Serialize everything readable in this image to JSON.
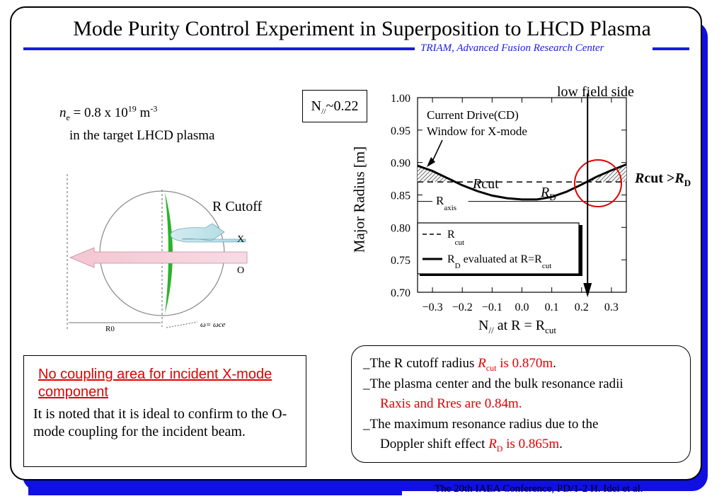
{
  "title": "Mode Purity Control Experiment in Superposition to LHCD Plasma",
  "subtitle": "TRIAM, Advanced Fusion Research Center",
  "density": {
    "symbol": "n",
    "subscript": "e",
    "value_text": " = 0.8 x 10",
    "exponent": "19",
    "unit": " m",
    "unit_exp": "-3",
    "line2": "in the target LHCD plasma"
  },
  "diagram": {
    "r_cutoff_label": "R Cutoff",
    "x_label": "X",
    "o_label": "O",
    "r0_label": "R0",
    "omega_label": "ω= ωce"
  },
  "npar_box": {
    "symbol": "N",
    "sub": "//",
    "value": "~0.22"
  },
  "low_field_label": "low field side",
  "cd_window_label_1": "Current Drive(CD)",
  "cd_window_label_2": "Window for X-mode",
  "rcut_label": "Rcut",
  "rd_label": "R",
  "rd_sub": "D",
  "raxis_label": "R",
  "raxis_sub": "axis",
  "rcut_gt": {
    "a": "Rcut >R",
    "sub": "D"
  },
  "legend": {
    "dashed": "R",
    "dashed_sub": "cut",
    "solid": "R",
    "solid_sub": "D",
    "solid_text": " evaluated at R=R",
    "solid_text_sub": "cut"
  },
  "xlabel": {
    "a": "N",
    "sub1": "//",
    "b": " at R = R",
    "sub2": "cut"
  },
  "ylabel": "Major Radius [m]",
  "chart_data": {
    "type": "line",
    "xlabel": "N// at R = Rcut",
    "ylabel": "Major Radius [m]",
    "xlim": [
      -0.35,
      0.35
    ],
    "ylim": [
      0.7,
      1.0
    ],
    "xticks": [
      "−0.3",
      "−0.2",
      "−0.1",
      "0.0",
      "0.1",
      "0.2",
      "0.3"
    ],
    "xtick_values": [
      -0.3,
      -0.2,
      -0.1,
      0.0,
      0.1,
      0.2,
      0.3
    ],
    "yticks": [
      "0.70",
      "0.75",
      "0.80",
      "0.85",
      "0.90",
      "0.95",
      "1.00"
    ],
    "ytick_values": [
      0.7,
      0.75,
      0.8,
      0.85,
      0.9,
      0.95,
      1.0
    ],
    "series": [
      {
        "name": "Rcut",
        "style": "dashed",
        "x": [
          -0.35,
          0.35
        ],
        "y": [
          0.87,
          0.87
        ]
      },
      {
        "name": "RD evaluated at R=Rcut",
        "style": "solid",
        "x": [
          -0.35,
          -0.3,
          -0.25,
          -0.2,
          -0.15,
          -0.1,
          -0.05,
          0.0,
          0.05,
          0.1,
          0.15,
          0.2,
          0.25,
          0.3,
          0.35
        ],
        "y": [
          0.895,
          0.887,
          0.876,
          0.865,
          0.856,
          0.849,
          0.845,
          0.843,
          0.843,
          0.847,
          0.855,
          0.866,
          0.878,
          0.888,
          0.897
        ]
      },
      {
        "name": "Raxis",
        "style": "thin",
        "x": [
          -0.35,
          0.35
        ],
        "y": [
          0.84,
          0.84
        ]
      }
    ],
    "marker_x": 0.22
  },
  "note": {
    "heading": "No coupling area for incident X-mode  component",
    "body": "It is noted that it is ideal to confirm to the O-mode coupling for the incident beam."
  },
  "results": {
    "l1a": "The R cutoff radius ",
    "l1r": "R",
    "l1sub": "cut",
    "l1val": " is 0.870m",
    "l1end": ".",
    "l2": "The plasma center and the bulk resonance radii",
    "l3": "Raxis and Rres are 0.84m.",
    "l4": "The maximum resonance radius due to the",
    "l5a": "Doppler shift effect  ",
    "l5r": "R",
    "l5sub": "D",
    "l5val": " is 0.865m",
    "l5end": "."
  },
  "footer": "The 20th IAEA Conference, PD/1-2 H. Idei et al."
}
